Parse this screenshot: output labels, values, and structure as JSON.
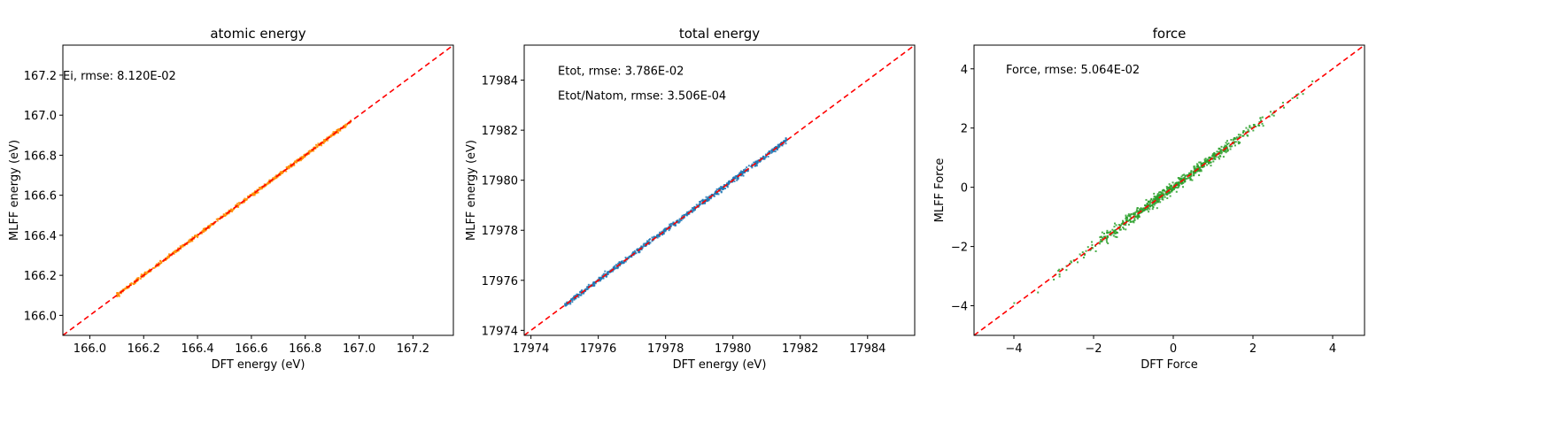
{
  "chart_data": [
    {
      "type": "scatter",
      "title": "atomic energy",
      "xlabel": "DFT energy (eV)",
      "ylabel": "MLFF energy (eV)",
      "xlim": [
        165.9,
        167.35
      ],
      "ylim": [
        165.9,
        167.35
      ],
      "xticks": [
        166.0,
        166.2,
        166.4,
        166.6,
        166.8,
        167.0,
        167.2
      ],
      "yticks": [
        166.0,
        166.2,
        166.4,
        166.6,
        166.8,
        167.0,
        167.2
      ],
      "tick_decimals": 1,
      "grid": false,
      "annotations": [
        {
          "text": "Ei, rmse: 8.120E-02",
          "x": 165.9,
          "y": 167.2
        }
      ],
      "series": [
        {
          "range": [
            166.1,
            166.97
          ],
          "spread": 0.004,
          "color": "#ff8c00",
          "size": 2
        }
      ],
      "reference_line": {
        "color": "#ff0000",
        "style": "dashed"
      }
    },
    {
      "type": "scatter",
      "title": "total energy",
      "xlabel": "DFT energy (eV)",
      "ylabel": "MLFF energy (eV)",
      "xlim": [
        17973.8,
        17985.4
      ],
      "ylim": [
        17973.8,
        17985.4
      ],
      "xticks": [
        17974,
        17976,
        17978,
        17980,
        17982,
        17984
      ],
      "yticks": [
        17974,
        17976,
        17978,
        17980,
        17982,
        17984
      ],
      "tick_decimals": 0,
      "grid": false,
      "annotations": [
        {
          "text": "Etot, rmse: 3.786E-02",
          "x": 17974.8,
          "y": 17984.4
        },
        {
          "text": "Etot/Natom, rmse: 3.506E-04",
          "x": 17974.8,
          "y": 17983.4
        }
      ],
      "series": [
        {
          "range": [
            17975.0,
            17981.6
          ],
          "spread": 0.05,
          "color": "#1f77b4",
          "size": 2
        }
      ],
      "reference_line": {
        "color": "#ff0000",
        "style": "dashed"
      }
    },
    {
      "type": "scatter",
      "title": "force",
      "xlabel": "DFT Force",
      "ylabel": "MLFF Force",
      "xlim": [
        -5.0,
        4.8
      ],
      "ylim": [
        -5.0,
        4.8
      ],
      "xticks": [
        -4,
        -2,
        0,
        2,
        4
      ],
      "yticks": [
        -4,
        -2,
        0,
        2,
        4
      ],
      "tick_decimals": 0,
      "grid": false,
      "annotations": [
        {
          "text": "Force, rmse: 5.064E-02",
          "x": -4.2,
          "y": 4.0
        }
      ],
      "series": [
        {
          "range": [
            -4.2,
            3.9
          ],
          "spread": 0.09,
          "color": "#2ca02c",
          "size": 2
        }
      ],
      "reference_line": {
        "color": "#ff0000",
        "style": "dashed"
      }
    }
  ]
}
